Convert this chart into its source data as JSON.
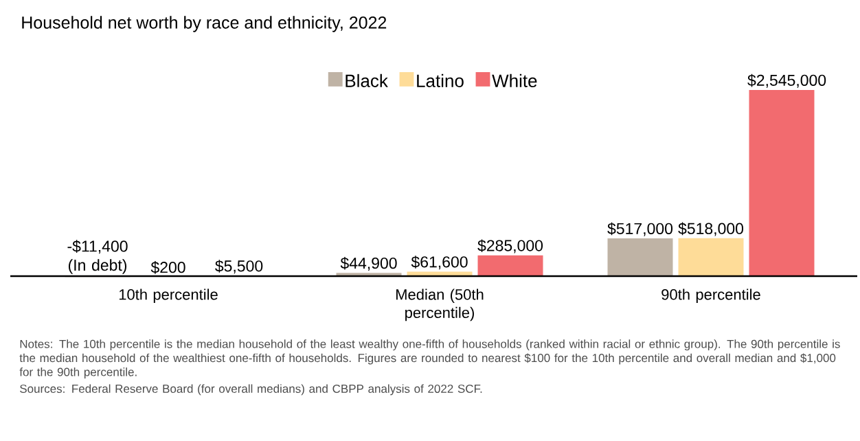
{
  "chart_data": {
    "type": "bar",
    "title": "Household net worth by race and ethnicity, 2022",
    "categories": [
      "10th percentile",
      "Median (50th percentile)",
      "90th percentile"
    ],
    "series": [
      {
        "name": "Black",
        "color": "#bfb3a5",
        "values": [
          -11400,
          44900,
          517000
        ],
        "value_labels": [
          "-$11,400 (In debt)",
          "$44,900",
          "$517,000"
        ]
      },
      {
        "name": "Latino",
        "color": "#fedc98",
        "values": [
          200,
          61600,
          518000
        ],
        "value_labels": [
          "$200",
          "$61,600",
          "$518,000"
        ]
      },
      {
        "name": "White",
        "color": "#f26b6f",
        "values": [
          5500,
          285000,
          2545000
        ],
        "value_labels": [
          "$5,500",
          "$285,000",
          "$2,545,000"
        ]
      }
    ],
    "legend": "top",
    "annotations": [
      "Notes: The 10th percentile is the median household of the least wealthy one-fifth of households (ranked within racial or ethnic group).  The 90th percentile is the median household of the wealthiest one-fifth of households. Figures are rounded to nearest $100 for the 10th percentile and overall median and $1,000 for the 90th percentile.",
      "Sources: Federal Reserve Board (for overall medians) and CBPP analysis of 2022 SCF."
    ]
  }
}
